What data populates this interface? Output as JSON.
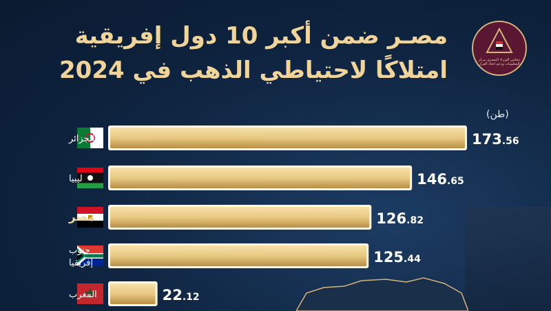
{
  "title_line1": "مصـر ضمن أكبر 10 دول إفريقية",
  "title_line2": "امتلاكًا لاحتياطي الذهب في 2024",
  "logo_caption": "مجلس الوزراء المصري مركز المعلومات ودعم اتخاذ القرار",
  "unit": "(طن)",
  "colors": {
    "gold": "#e9c982",
    "gold_dark": "#b88f45",
    "title": "#f1d49a",
    "highlight": "#f1d49a",
    "label": "#ffffff"
  },
  "chart_data": {
    "type": "bar",
    "orientation": "horizontal",
    "title": "مصـر ضمن أكبر 10 دول إفريقية امتلاكًا لاحتياطي الذهب في 2024",
    "unit": "(طن)",
    "categories": [
      "الجزائر",
      "ليبيا",
      "مصر",
      "جنوب إفريقيا",
      "المغرب"
    ],
    "category_lines": [
      [
        "الجزائر"
      ],
      [
        "ليبيا"
      ],
      [
        "مصر"
      ],
      [
        "جنوب",
        "إفريقيا"
      ],
      [
        "المغرب"
      ]
    ],
    "flags": [
      "algeria-flag",
      "libya-flag",
      "egypt-flag",
      "south-africa-flag",
      "morocco-flag"
    ],
    "highlight": "مصر",
    "value_labels": [
      {
        "int": "173",
        "dec": ".56"
      },
      {
        "int": "146",
        "dec": ".65"
      },
      {
        "int": "126",
        "dec": ".82"
      },
      {
        "int": "125",
        "dec": ".44"
      },
      {
        "int": "22",
        "dec": ".12"
      }
    ],
    "values": [
      173.56,
      146.65,
      126.82,
      125.44,
      22.12
    ]
  }
}
